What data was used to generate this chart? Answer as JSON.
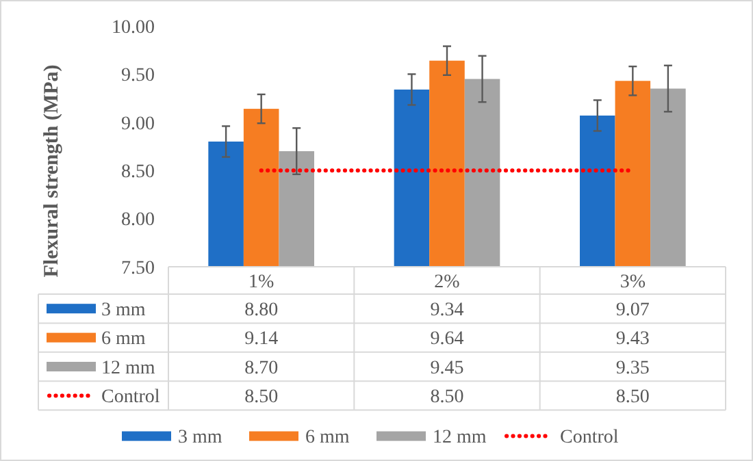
{
  "chart_data": {
    "type": "bar",
    "ylabel": "Flexural strength (MPa)",
    "categories": [
      "1%",
      "2%",
      "3%"
    ],
    "series": [
      {
        "name": "3 mm",
        "color": "#1f6fc6",
        "values": [
          8.8,
          9.34,
          9.07
        ],
        "value_labels": [
          "8.80",
          "9.34",
          "9.07"
        ],
        "errors": [
          0.16,
          0.16,
          0.16
        ]
      },
      {
        "name": "6 mm",
        "color": "#f67d22",
        "values": [
          9.14,
          9.64,
          9.43
        ],
        "value_labels": [
          "9.14",
          "9.64",
          "9.43"
        ],
        "errors": [
          0.15,
          0.15,
          0.15
        ]
      },
      {
        "name": "12 mm",
        "color": "#a5a5a5",
        "values": [
          8.7,
          9.45,
          9.35
        ],
        "value_labels": [
          "8.70",
          "9.45",
          "9.35"
        ],
        "errors": [
          0.24,
          0.24,
          0.24
        ]
      },
      {
        "name": "Control",
        "type": "line",
        "color": "#ff0000",
        "line_style": "dotted",
        "values": [
          8.5,
          8.5,
          8.5
        ],
        "value_labels": [
          "8.50",
          "8.50",
          "8.50"
        ]
      }
    ],
    "ylim": [
      7.5,
      10
    ],
    "yticks": [
      {
        "value": 7.5,
        "label": "7.50"
      },
      {
        "value": 8,
        "label": "8.00"
      },
      {
        "value": 8.5,
        "label": "8.50"
      },
      {
        "value": 9,
        "label": "9.00"
      },
      {
        "value": 9.5,
        "label": "9.50"
      },
      {
        "value": 10,
        "label": "10.00"
      }
    ],
    "grid": false,
    "legend": "bottom"
  }
}
